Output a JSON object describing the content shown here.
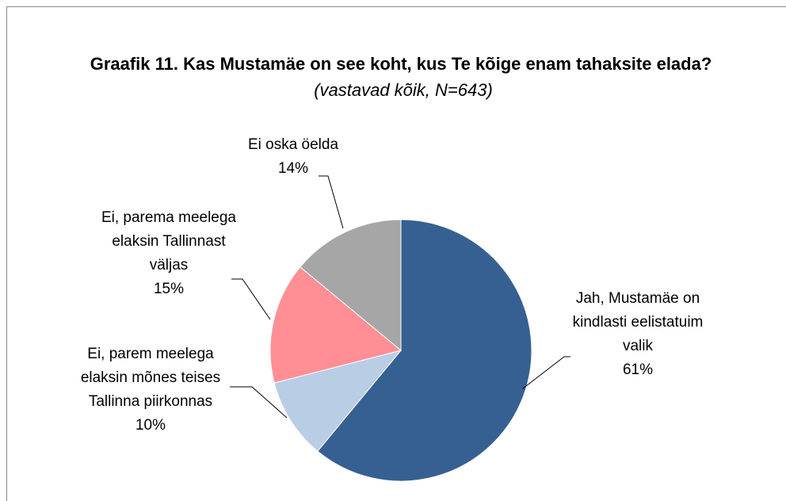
{
  "chart_data": {
    "type": "pie",
    "title": "Graafik 11. Kas Mustamäe on see koht, kus Te kõige enam tahaksite elada?",
    "subtitle": "(vastavad kõik, N=643)",
    "categories": [
      "Jah, Mustamäe on kindlasti eelistatuim valik",
      "Ei, parem meelega elaksin mõnes teises Tallinna piirkonnas",
      "Ei, parema meelega elaksin Tallinnast väljas",
      "Ei oska öelda"
    ],
    "values": [
      61,
      10,
      15,
      14
    ],
    "value_labels": [
      "61%",
      "10%",
      "15%",
      "14%"
    ],
    "colors": [
      "#376092",
      "#b9cde5",
      "#ff8f95",
      "#a6a6a6"
    ]
  }
}
